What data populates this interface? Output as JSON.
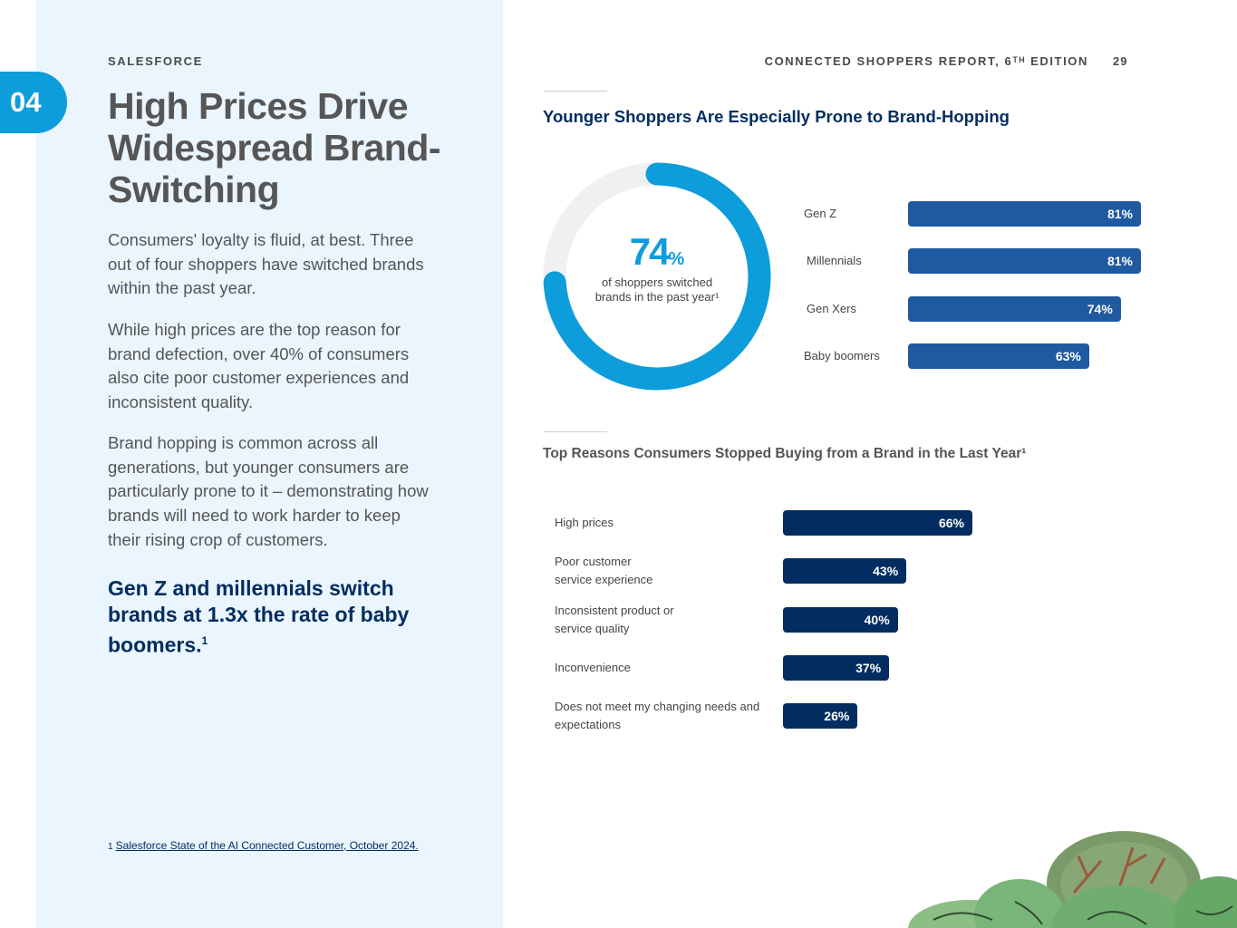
{
  "header": {
    "brand": "SALESFORCE",
    "report_title": "CONNECTED SHOPPERS REPORT, 6ᵀᴴ EDITION",
    "page_number": "29"
  },
  "section": {
    "number": "04"
  },
  "left": {
    "headline": "High Prices Drive Widespread Brand-Switching",
    "paragraphs": [
      "Consumers' loyalty is fluid, at best. Three out of four shoppers have switched brands within the past year.",
      "While high prices are the top reason for brand defection, over 40% of consumers also cite poor customer experiences and inconsistent quality.",
      "Brand hopping is common across all generations, but younger consumers are particularly prone to it – demonstrating how brands will need to work harder to keep their rising crop of customers."
    ],
    "callout": "Gen Z and millennials switch brands at 1.3x the rate of baby boomers.",
    "callout_sup": "1",
    "footnote_mark": "1",
    "footnote_text": "Salesforce State of the AI Connected Customer, October 2024."
  },
  "colors": {
    "accent_blue": "#0d9dda",
    "navy": "#032d60",
    "mid_blue": "#1f5aa0",
    "panel_bg": "#eaf5fe"
  },
  "chart_data": [
    {
      "type": "pie",
      "variant": "donut",
      "title": "Younger Shoppers Are Especially Prone to Brand-Hopping",
      "value": 74,
      "value_number": "74",
      "value_unit": "%",
      "label": "of shoppers switched brands in the past year¹"
    },
    {
      "type": "bar",
      "orientation": "horizontal",
      "title": "Younger Shoppers Are Especially Prone to Brand-Hopping",
      "categories": [
        "Gen Z",
        "Millennials",
        "Gen Xers",
        "Baby boomers"
      ],
      "values": [
        81,
        81,
        74,
        63
      ],
      "labels": [
        "81%",
        "81%",
        "74%",
        "63%"
      ],
      "xlim": [
        0,
        81
      ]
    },
    {
      "type": "bar",
      "orientation": "horizontal",
      "title": "Top Reasons Consumers Stopped Buying from a Brand in the Last Year¹",
      "categories": [
        "High prices",
        "Poor customer service experience",
        "Inconsistent product or service quality",
        "Inconvenience",
        "Does not meet my changing needs and expectations"
      ],
      "values": [
        66,
        43,
        40,
        37,
        26
      ],
      "labels": [
        "66%",
        "43%",
        "40%",
        "37%",
        "26%"
      ],
      "xlim": [
        0,
        100
      ]
    }
  ]
}
